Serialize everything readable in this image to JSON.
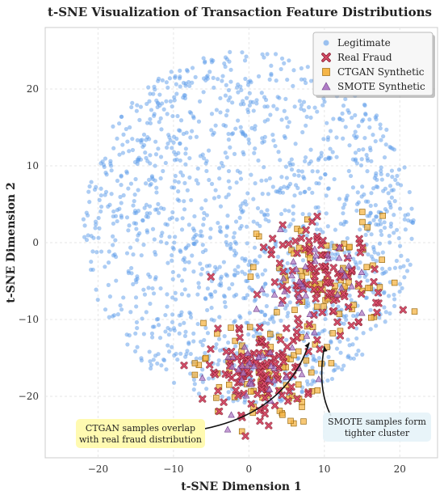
{
  "chart_data": {
    "type": "scatter",
    "title": "t-SNE Visualization of Transaction Feature Distributions",
    "xlabel": "t-SNE Dimension 1",
    "ylabel": "t-SNE Dimension 2",
    "xlim": [
      -27,
      25
    ],
    "ylim": [
      -28,
      28
    ],
    "xticks": [
      -20,
      -10,
      0,
      10,
      20
    ],
    "yticks": [
      -20,
      -10,
      0,
      10,
      20
    ],
    "grid": true,
    "legend_position": "top-right",
    "series": [
      {
        "name": "Legitimate",
        "marker": "circle",
        "color": "#5b9bea",
        "distribution": {
          "shape": "disk",
          "center": [
            0,
            2
          ],
          "radius": 22,
          "count": 1500
        }
      },
      {
        "name": "Real Fraud",
        "marker": "x",
        "color": "#d94f6b",
        "clusters": [
          {
            "center": [
              1,
              -17
            ],
            "spread": [
              3.2,
              2.6
            ],
            "count": 110
          },
          {
            "center": [
              10,
              -5
            ],
            "spread": [
              4.0,
              3.5
            ],
            "count": 110
          }
        ]
      },
      {
        "name": "CTGAN Synthetic",
        "marker": "square",
        "color": "#f5b547",
        "clusters": [
          {
            "center": [
              1,
              -17
            ],
            "spread": [
              4.2,
              3.4
            ],
            "count": 80
          },
          {
            "center": [
              11,
              -5
            ],
            "spread": [
              4.8,
              4.2
            ],
            "count": 80
          }
        ]
      },
      {
        "name": "SMOTE Synthetic",
        "marker": "triangle",
        "color": "#b07cc6",
        "clusters": [
          {
            "center": [
              1,
              -17
            ],
            "spread": [
              3.0,
              2.5
            ],
            "count": 35
          },
          {
            "center": [
              8,
              -5
            ],
            "spread": [
              3.5,
              3.0
            ],
            "count": 35
          }
        ]
      }
    ],
    "annotations": [
      {
        "text": [
          "CTGAN samples overlap",
          "with real fraud distribution"
        ],
        "box_color": "#fff9a8",
        "arrow_to": [
          8,
          -13
        ]
      },
      {
        "text": [
          "SMOTE samples form",
          "tighter cluster"
        ],
        "box_color": "#e6f3f8",
        "arrow_to": [
          10,
          -13.5
        ]
      }
    ]
  }
}
